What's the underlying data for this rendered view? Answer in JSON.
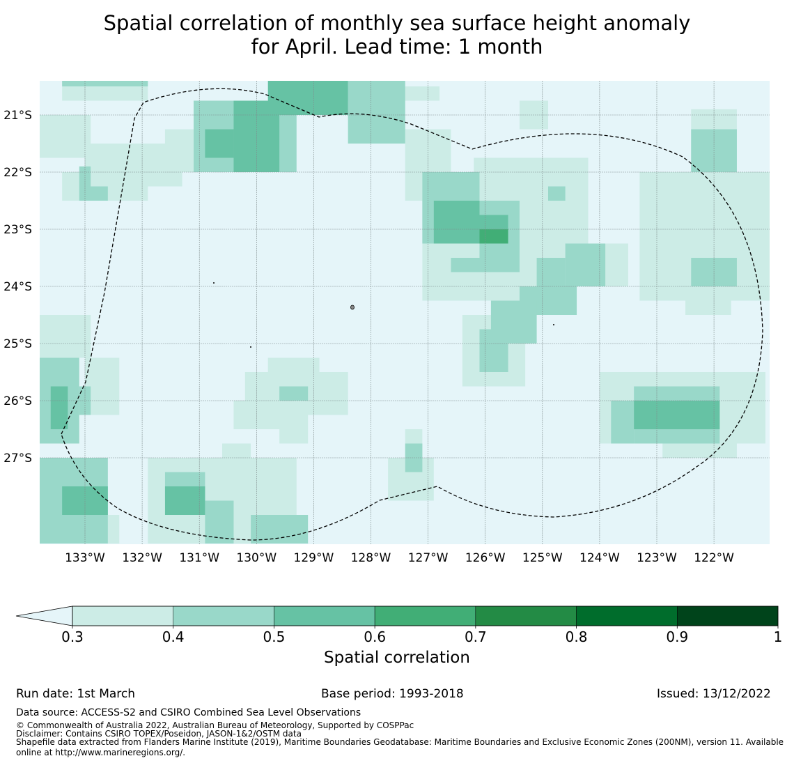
{
  "title": {
    "line1": "Spatial correlation of monthly sea surface height anomaly",
    "line2": "for April. Lead time: 1 month"
  },
  "chart_data": {
    "type": "heatmap",
    "title": "Spatial correlation of monthly sea surface height anomaly for April. Lead time: 1 month",
    "x_tick_labels": [
      "133°W",
      "132°W",
      "131°W",
      "130°W",
      "129°W",
      "128°W",
      "127°W",
      "126°W",
      "125°W",
      "124°W",
      "123°W",
      "122°W"
    ],
    "x_tick_values": [
      -133,
      -132,
      -131,
      -130,
      -129,
      -128,
      -127,
      -126,
      -125,
      -124,
      -123,
      -122
    ],
    "y_tick_labels": [
      "21°S",
      "22°S",
      "23°S",
      "24°S",
      "25°S",
      "26°S",
      "27°S"
    ],
    "y_tick_values": [
      -21,
      -22,
      -23,
      -24,
      -25,
      -26,
      -27
    ],
    "lon_range": [
      -133.8,
      -121.0
    ],
    "lat_range": [
      -28.5,
      -20.4
    ],
    "grid_resolution_deg": 0.25,
    "colorbar": {
      "label": "Spatial correlation",
      "tick_labels": [
        "0.3",
        "0.4",
        "0.5",
        "0.6",
        "0.7",
        "0.8",
        "0.9",
        "1"
      ],
      "bounds": [
        0.3,
        0.4,
        0.5,
        0.6,
        0.7,
        0.8,
        0.9,
        1.0
      ],
      "colors": [
        "#ccece6",
        "#99d8c9",
        "#66c2a4",
        "#41ae76",
        "#238b45",
        "#006d2c",
        "#00441b"
      ],
      "under_color": "#e5f5f9",
      "extend": "min"
    },
    "regions": [
      {
        "level": 0.3,
        "lat": [
          -20.5,
          -20.75
        ],
        "lon": [
          -133.4,
          -131.9
        ]
      },
      {
        "level": 0.3,
        "lat": [
          -21.0,
          -21.75
        ],
        "lon": [
          -133.8,
          -132.9
        ]
      },
      {
        "level": 0.3,
        "lat": [
          -21.5,
          -22.25
        ],
        "lon": [
          -133.0,
          -131.3
        ]
      },
      {
        "level": 0.3,
        "lat": [
          -22.0,
          -22.5
        ],
        "lon": [
          -133.4,
          -131.9
        ]
      },
      {
        "level": 0.3,
        "lat": [
          -20.75,
          -21.25
        ],
        "lon": [
          -131.1,
          -130.3
        ]
      },
      {
        "level": 0.3,
        "lat": [
          -21.25,
          -22.0
        ],
        "lon": [
          -131.6,
          -130.6
        ]
      },
      {
        "level": 0.3,
        "lat": [
          -20.5,
          -20.75
        ],
        "lon": [
          -128.9,
          -126.8
        ]
      },
      {
        "level": 0.3,
        "lat": [
          -21.25,
          -22.5
        ],
        "lon": [
          -127.4,
          -126.6
        ]
      },
      {
        "level": 0.3,
        "lat": [
          -21.75,
          -23.25
        ],
        "lon": [
          -126.2,
          -124.2
        ]
      },
      {
        "level": 0.3,
        "lat": [
          -22.0,
          -24.25
        ],
        "lon": [
          -127.1,
          -124.8
        ]
      },
      {
        "level": 0.3,
        "lat": [
          -23.25,
          -24.0
        ],
        "lon": [
          -125.3,
          -123.5
        ]
      },
      {
        "level": 0.3,
        "lat": [
          -23.5,
          -24.5
        ],
        "lon": [
          -125.9,
          -124.6
        ]
      },
      {
        "level": 0.3,
        "lat": [
          -24.5,
          -25.75
        ],
        "lon": [
          -126.4,
          -125.3
        ]
      },
      {
        "level": 0.3,
        "lat": [
          -20.75,
          -21.25
        ],
        "lon": [
          -125.4,
          -124.9
        ]
      },
      {
        "level": 0.3,
        "lat": [
          -20.9,
          -22.0
        ],
        "lon": [
          -122.4,
          -121.6
        ]
      },
      {
        "level": 0.3,
        "lat": [
          -22.0,
          -24.25
        ],
        "lon": [
          -123.3,
          -121.0
        ]
      },
      {
        "level": 0.3,
        "lat": [
          -24.0,
          -24.5
        ],
        "lon": [
          -122.5,
          -121.7
        ]
      },
      {
        "level": 0.3,
        "lat": [
          -25.25,
          -25.75
        ],
        "lon": [
          -129.8,
          -128.9
        ]
      },
      {
        "level": 0.3,
        "lat": [
          -25.5,
          -26.25
        ],
        "lon": [
          -130.2,
          -128.4
        ]
      },
      {
        "level": 0.3,
        "lat": [
          -26.0,
          -26.5
        ],
        "lon": [
          -130.4,
          -129.1
        ]
      },
      {
        "level": 0.3,
        "lat": [
          -26.5,
          -26.75
        ],
        "lon": [
          -129.6,
          -129.1
        ]
      },
      {
        "level": 0.3,
        "lat": [
          -25.5,
          -26.75
        ],
        "lon": [
          -124.0,
          -121.1
        ]
      },
      {
        "level": 0.3,
        "lat": [
          -26.5,
          -27.0
        ],
        "lon": [
          -122.9,
          -121.6
        ]
      },
      {
        "level": 0.3,
        "lat": [
          -24.5,
          -25.25
        ],
        "lon": [
          -133.8,
          -132.9
        ]
      },
      {
        "level": 0.3,
        "lat": [
          -25.25,
          -26.25
        ],
        "lon": [
          -133.0,
          -132.4
        ]
      },
      {
        "level": 0.3,
        "lat": [
          -27.0,
          -27.75
        ],
        "lon": [
          -127.7,
          -126.9
        ]
      },
      {
        "level": 0.3,
        "lat": [
          -26.5,
          -27.0
        ],
        "lon": [
          -127.4,
          -127.1
        ]
      },
      {
        "level": 0.3,
        "lat": [
          -26.75,
          -27.25
        ],
        "lon": [
          -130.6,
          -130.1
        ]
      },
      {
        "level": 0.3,
        "lat": [
          -27.0,
          -28.5
        ],
        "lon": [
          -131.9,
          -129.3
        ]
      },
      {
        "level": 0.3,
        "lat": [
          -28.0,
          -28.5
        ],
        "lon": [
          -133.1,
          -132.4
        ]
      },
      {
        "level": 0.4,
        "lat": [
          -20.4,
          -20.5
        ],
        "lon": [
          -133.4,
          -131.9
        ]
      },
      {
        "level": 0.4,
        "lat": [
          -20.75,
          -22.0
        ],
        "lon": [
          -131.1,
          -129.3
        ]
      },
      {
        "level": 0.4,
        "lat": [
          -20.4,
          -21.5
        ],
        "lon": [
          -128.4,
          -127.4
        ]
      },
      {
        "level": 0.4,
        "lat": [
          -21.9,
          -22.25
        ],
        "lon": [
          -133.1,
          -132.9
        ]
      },
      {
        "level": 0.4,
        "lat": [
          -22.25,
          -22.5
        ],
        "lon": [
          -133.1,
          -132.6
        ]
      },
      {
        "level": 0.4,
        "lat": [
          -22.0,
          -23.25
        ],
        "lon": [
          -127.1,
          -126.1
        ]
      },
      {
        "level": 0.4,
        "lat": [
          -22.5,
          -23.5
        ],
        "lon": [
          -126.1,
          -125.4
        ]
      },
      {
        "level": 0.4,
        "lat": [
          -23.5,
          -23.75
        ],
        "lon": [
          -126.6,
          -125.4
        ]
      },
      {
        "level": 0.4,
        "lat": [
          -22.25,
          -22.5
        ],
        "lon": [
          -124.9,
          -124.6
        ]
      },
      {
        "level": 0.4,
        "lat": [
          -23.25,
          -24.0
        ],
        "lon": [
          -124.6,
          -123.9
        ]
      },
      {
        "level": 0.4,
        "lat": [
          -23.5,
          -24.0
        ],
        "lon": [
          -125.1,
          -124.6
        ]
      },
      {
        "level": 0.4,
        "lat": [
          -24.0,
          -24.5
        ],
        "lon": [
          -125.4,
          -124.4
        ]
      },
      {
        "level": 0.4,
        "lat": [
          -24.25,
          -25.0
        ],
        "lon": [
          -125.9,
          -125.1
        ]
      },
      {
        "level": 0.4,
        "lat": [
          -24.75,
          -25.5
        ],
        "lon": [
          -126.1,
          -125.6
        ]
      },
      {
        "level": 0.4,
        "lat": [
          -21.25,
          -22.0
        ],
        "lon": [
          -122.4,
          -121.6
        ]
      },
      {
        "level": 0.4,
        "lat": [
          -23.5,
          -24.0
        ],
        "lon": [
          -122.4,
          -121.6
        ]
      },
      {
        "level": 0.4,
        "lat": [
          -25.75,
          -26.75
        ],
        "lon": [
          -123.4,
          -121.9
        ]
      },
      {
        "level": 0.4,
        "lat": [
          -26.0,
          -26.75
        ],
        "lon": [
          -123.8,
          -123.4
        ]
      },
      {
        "level": 0.4,
        "lat": [
          -25.75,
          -26.0
        ],
        "lon": [
          -129.6,
          -129.1
        ]
      },
      {
        "level": 0.4,
        "lat": [
          -25.25,
          -26.75
        ],
        "lon": [
          -133.8,
          -133.1
        ]
      },
      {
        "level": 0.4,
        "lat": [
          -25.75,
          -26.25
        ],
        "lon": [
          -133.1,
          -132.9
        ]
      },
      {
        "level": 0.4,
        "lat": [
          -26.75,
          -27.25
        ],
        "lon": [
          -127.4,
          -127.1
        ]
      },
      {
        "level": 0.4,
        "lat": [
          -27.0,
          -28.5
        ],
        "lon": [
          -133.8,
          -132.6
        ]
      },
      {
        "level": 0.4,
        "lat": [
          -27.25,
          -27.75
        ],
        "lon": [
          -131.6,
          -130.9
        ]
      },
      {
        "level": 0.4,
        "lat": [
          -27.75,
          -28.5
        ],
        "lon": [
          -130.9,
          -130.4
        ]
      },
      {
        "level": 0.4,
        "lat": [
          -28.0,
          -28.5
        ],
        "lon": [
          -130.1,
          -129.1
        ]
      },
      {
        "level": 0.5,
        "lat": [
          -20.4,
          -21.0
        ],
        "lon": [
          -129.8,
          -128.4
        ]
      },
      {
        "level": 0.5,
        "lat": [
          -20.75,
          -22.0
        ],
        "lon": [
          -130.4,
          -129.6
        ]
      },
      {
        "level": 0.5,
        "lat": [
          -21.25,
          -21.75
        ],
        "lon": [
          -130.9,
          -130.4
        ]
      },
      {
        "level": 0.5,
        "lat": [
          -22.5,
          -23.25
        ],
        "lon": [
          -126.9,
          -126.1
        ]
      },
      {
        "level": 0.5,
        "lat": [
          -22.75,
          -23.25
        ],
        "lon": [
          -126.1,
          -125.6
        ]
      },
      {
        "level": 0.5,
        "lat": [
          -25.75,
          -26.5
        ],
        "lon": [
          -133.6,
          -133.3
        ]
      },
      {
        "level": 0.5,
        "lat": [
          -26.0,
          -26.5
        ],
        "lon": [
          -123.4,
          -121.9
        ]
      },
      {
        "level": 0.5,
        "lat": [
          -27.5,
          -28.0
        ],
        "lon": [
          -133.4,
          -132.6
        ]
      },
      {
        "level": 0.5,
        "lat": [
          -27.5,
          -28.0
        ],
        "lon": [
          -131.6,
          -130.9
        ]
      },
      {
        "level": 0.6,
        "lat": [
          -23.0,
          -23.25
        ],
        "lon": [
          -126.1,
          -125.6
        ]
      }
    ],
    "annotations": [
      "Dashed line: Maritime Boundaries / Exclusive Economic Zone (200NM)",
      "Small island outlines near 24.4°S 128.3°W"
    ]
  },
  "colorbar_label": "Spatial correlation",
  "footer": {
    "run_date": "Run date: 1st March",
    "base_period": "Base period: 1993-2018",
    "issued": "Issued: 13/12/2022",
    "data_source": "Data source: ACCESS-S2 and CSIRO Combined Sea Level Observations",
    "copyright": "© Commonwealth of Australia 2022, Australian Bureau of Meteorology, Supported by COSPPac",
    "disclaimer": "Disclaimer: Contains CSIRO TOPEX/Poseidon, JASON-1&2/OSTM data",
    "shapefile_line1": "Shapefile data extracted from Flanders Marine Institute (2019), Maritime Boundaries Geodatabase: Maritime Boundaries and Exclusive Economic Zones (200NM), version 11. Available",
    "shapefile_line2": "online at http://www.marineregions.org/."
  }
}
